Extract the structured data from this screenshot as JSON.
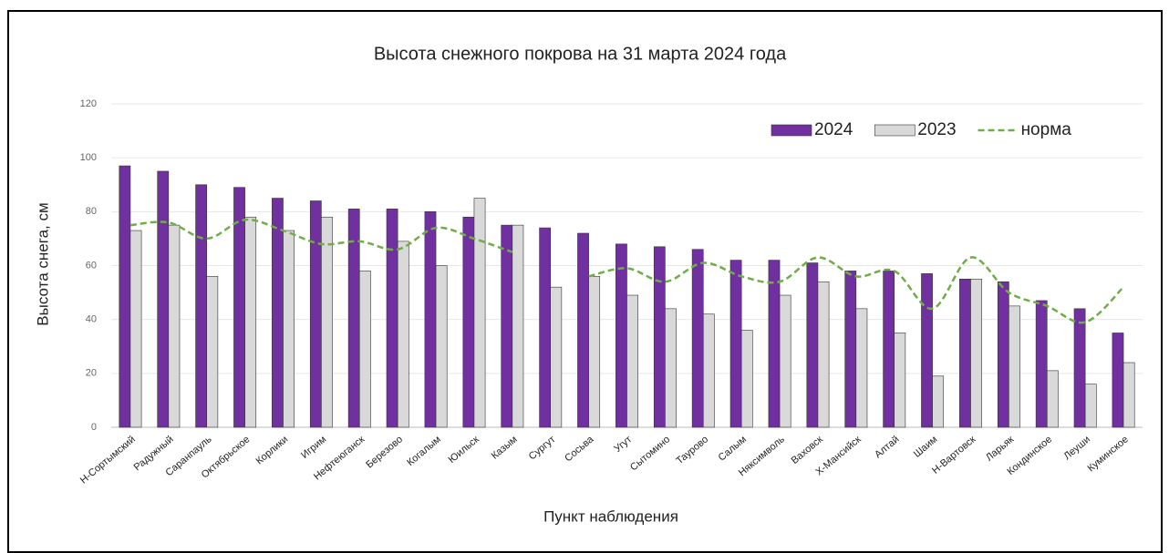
{
  "chart_data": {
    "type": "bar",
    "title": "Высота снежного покрова на 31 марта 2024 года",
    "x_label": "Пункт наблюдения",
    "y_label": "Высота снега, см",
    "categories": [
      "Н-Сортымский",
      "Радужный",
      "Саранпауль",
      "Октябрьское",
      "Корлики",
      "Игрим",
      "Нефтеюганск",
      "Березово",
      "Когалым",
      "Юильск",
      "Казым",
      "Сургут",
      "Сосьва",
      "Угут",
      "Сытомино",
      "Таурово",
      "Салым",
      "Няксимволь",
      "Ваховск",
      "Х-Мансийск",
      "Алтай",
      "Шаим",
      "Н-Вартовск",
      "Ларьяк",
      "Кондинское",
      "Леуши",
      "Куминское"
    ],
    "series": [
      {
        "name": "2024",
        "type": "bar",
        "color": "#7030a0",
        "values": [
          97,
          95,
          90,
          89,
          85,
          84,
          81,
          81,
          80,
          78,
          75,
          74,
          72,
          68,
          67,
          66,
          62,
          62,
          61,
          58,
          58,
          57,
          55,
          54,
          47,
          44,
          35
        ]
      },
      {
        "name": "2023",
        "type": "bar",
        "color": "#d9d9d9",
        "values": [
          73,
          75,
          56,
          78,
          73,
          78,
          58,
          69,
          60,
          85,
          75,
          52,
          56,
          49,
          44,
          42,
          36,
          49,
          54,
          44,
          35,
          19,
          55,
          45,
          21,
          16,
          24
        ]
      },
      {
        "name": "норма",
        "type": "line",
        "color": "#70ad47",
        "values": [
          75,
          76,
          70,
          77,
          73,
          68,
          69,
          66,
          74,
          70,
          65,
          null,
          56,
          59,
          54,
          61,
          56,
          54,
          63,
          56,
          58,
          44,
          63,
          50,
          45,
          39,
          52
        ]
      }
    ],
    "ylim": [
      0,
      120
    ],
    "yticks": [
      0,
      20,
      40,
      60,
      80,
      100,
      120
    ],
    "grid": true,
    "legend": "top-right"
  }
}
